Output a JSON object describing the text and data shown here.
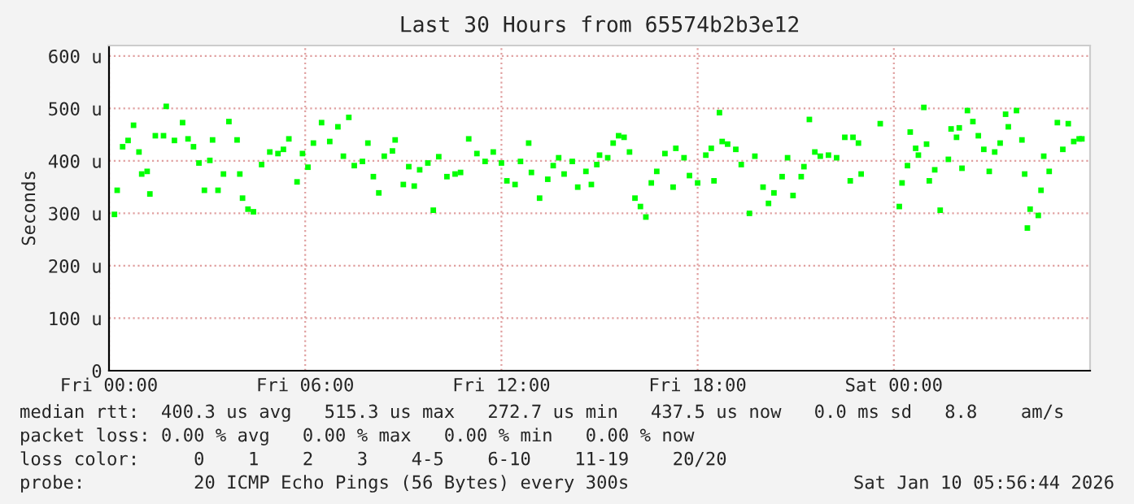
{
  "chart_data": {
    "type": "scatter",
    "title": "Last 30 Hours from 65574b2b3e12",
    "ylabel": "Seconds",
    "x": [
      "2026-01-09T00:10",
      "2026-01-09T00:15",
      "2026-01-09T00:25",
      "2026-01-09T00:35",
      "2026-01-09T00:45",
      "2026-01-09T00:55",
      "2026-01-09T01:00",
      "2026-01-09T01:10",
      "2026-01-09T01:15",
      "2026-01-09T01:25",
      "2026-01-09T01:40",
      "2026-01-09T01:45",
      "2026-01-09T02:00",
      "2026-01-09T02:15",
      "2026-01-09T02:25",
      "2026-01-09T02:35",
      "2026-01-09T02:45",
      "2026-01-09T02:55",
      "2026-01-09T03:05",
      "2026-01-09T03:10",
      "2026-01-09T03:20",
      "2026-01-09T03:30",
      "2026-01-09T03:40",
      "2026-01-09T03:55",
      "2026-01-09T04:00",
      "2026-01-09T04:05",
      "2026-01-09T04:15",
      "2026-01-09T04:25",
      "2026-01-09T04:40",
      "2026-01-09T04:55",
      "2026-01-09T05:10",
      "2026-01-09T05:20",
      "2026-01-09T05:30",
      "2026-01-09T05:45",
      "2026-01-09T05:55",
      "2026-01-09T06:05",
      "2026-01-09T06:15",
      "2026-01-09T06:30",
      "2026-01-09T06:45",
      "2026-01-09T07:00",
      "2026-01-09T07:10",
      "2026-01-09T07:20",
      "2026-01-09T07:30",
      "2026-01-09T07:45",
      "2026-01-09T07:55",
      "2026-01-09T08:05",
      "2026-01-09T08:15",
      "2026-01-09T08:25",
      "2026-01-09T08:40",
      "2026-01-09T08:45",
      "2026-01-09T09:00",
      "2026-01-09T09:10",
      "2026-01-09T09:20",
      "2026-01-09T09:30",
      "2026-01-09T09:45",
      "2026-01-09T09:55",
      "2026-01-09T10:05",
      "2026-01-09T10:20",
      "2026-01-09T10:35",
      "2026-01-09T10:45",
      "2026-01-09T11:00",
      "2026-01-09T11:15",
      "2026-01-09T11:30",
      "2026-01-09T11:45",
      "2026-01-09T12:00",
      "2026-01-09T12:10",
      "2026-01-09T12:25",
      "2026-01-09T12:35",
      "2026-01-09T12:50",
      "2026-01-09T12:55",
      "2026-01-09T13:10",
      "2026-01-09T13:25",
      "2026-01-09T13:35",
      "2026-01-09T13:45",
      "2026-01-09T13:55",
      "2026-01-09T14:10",
      "2026-01-09T14:20",
      "2026-01-09T14:35",
      "2026-01-09T14:45",
      "2026-01-09T14:55",
      "2026-01-09T15:00",
      "2026-01-09T15:15",
      "2026-01-09T15:25",
      "2026-01-09T15:35",
      "2026-01-09T15:45",
      "2026-01-09T15:55",
      "2026-01-09T16:05",
      "2026-01-09T16:15",
      "2026-01-09T16:25",
      "2026-01-09T16:35",
      "2026-01-09T16:45",
      "2026-01-09T17:00",
      "2026-01-09T17:15",
      "2026-01-09T17:20",
      "2026-01-09T17:35",
      "2026-01-09T17:45",
      "2026-01-09T18:00",
      "2026-01-09T18:15",
      "2026-01-09T18:25",
      "2026-01-09T18:30",
      "2026-01-09T18:40",
      "2026-01-09T18:45",
      "2026-01-09T18:55",
      "2026-01-09T19:10",
      "2026-01-09T19:20",
      "2026-01-09T19:35",
      "2026-01-09T19:45",
      "2026-01-09T20:00",
      "2026-01-09T20:10",
      "2026-01-09T20:20",
      "2026-01-09T20:35",
      "2026-01-09T20:45",
      "2026-01-09T20:55",
      "2026-01-09T21:10",
      "2026-01-09T21:15",
      "2026-01-09T21:25",
      "2026-01-09T21:35",
      "2026-01-09T21:45",
      "2026-01-09T22:00",
      "2026-01-09T22:15",
      "2026-01-09T22:30",
      "2026-01-09T22:40",
      "2026-01-09T22:45",
      "2026-01-09T22:55",
      "2026-01-09T23:00",
      "2026-01-09T23:35",
      "2026-01-10T00:10",
      "2026-01-10T00:15",
      "2026-01-10T00:25",
      "2026-01-10T00:30",
      "2026-01-10T00:40",
      "2026-01-10T00:45",
      "2026-01-10T00:55",
      "2026-01-10T01:00",
      "2026-01-10T01:05",
      "2026-01-10T01:15",
      "2026-01-10T01:25",
      "2026-01-10T01:40",
      "2026-01-10T01:45",
      "2026-01-10T01:55",
      "2026-01-10T02:00",
      "2026-01-10T02:05",
      "2026-01-10T02:15",
      "2026-01-10T02:25",
      "2026-01-10T02:35",
      "2026-01-10T02:45",
      "2026-01-10T02:55",
      "2026-01-10T03:05",
      "2026-01-10T03:15",
      "2026-01-10T03:25",
      "2026-01-10T03:30",
      "2026-01-10T03:45",
      "2026-01-10T03:55",
      "2026-01-10T04:00",
      "2026-01-10T04:05",
      "2026-01-10T04:10",
      "2026-01-10T04:25",
      "2026-01-10T04:30",
      "2026-01-10T04:35",
      "2026-01-10T04:45",
      "2026-01-10T05:00",
      "2026-01-10T05:10",
      "2026-01-10T05:20",
      "2026-01-10T05:30",
      "2026-01-10T05:40",
      "2026-01-10T05:45"
    ],
    "series": [
      {
        "color": "#00ff00",
        "values": [
          298,
          344,
          427,
          439,
          468,
          417,
          375,
          380,
          337,
          448,
          448,
          504,
          439,
          473,
          442,
          427,
          396,
          344,
          401,
          440,
          344,
          375,
          475,
          440,
          375,
          329,
          308,
          303,
          393,
          417,
          414,
          422,
          442,
          360,
          414,
          388,
          434,
          473,
          437,
          465,
          409,
          483,
          391,
          399,
          434,
          370,
          339,
          409,
          419,
          440,
          355,
          389,
          352,
          383,
          396,
          306,
          408,
          370,
          375,
          378,
          442,
          414,
          399,
          417,
          396,
          362,
          355,
          399,
          434,
          378,
          329,
          365,
          391,
          406,
          375,
          399,
          350,
          380,
          355,
          393,
          411,
          406,
          434,
          448,
          445,
          417,
          329,
          313,
          293,
          358,
          380,
          414,
          350,
          424,
          406,
          372,
          358,
          411,
          424,
          362,
          492,
          437,
          432,
          422,
          393,
          300,
          409,
          350,
          319,
          339,
          370,
          406,
          334,
          370,
          389,
          479,
          417,
          409,
          411,
          406,
          445,
          362,
          445,
          434,
          375,
          471,
          313,
          358,
          391,
          455,
          424,
          411,
          502,
          432,
          362,
          383,
          306,
          403,
          461,
          445,
          463,
          386,
          496,
          475,
          448,
          422,
          380,
          417,
          434,
          489,
          465,
          496,
          440,
          375,
          272,
          308,
          296,
          344,
          409,
          380,
          473,
          422,
          471,
          437,
          442,
          442
        ]
      }
    ],
    "marker": "square",
    "xlim": [
      "2026-01-09T00:00",
      "2026-01-10T06:00"
    ],
    "xticks": [
      {
        "value": "2026-01-09T00:00",
        "label": "Fri 00:00"
      },
      {
        "value": "2026-01-09T06:00",
        "label": "Fri 06:00"
      },
      {
        "value": "2026-01-09T12:00",
        "label": "Fri 12:00"
      },
      {
        "value": "2026-01-09T18:00",
        "label": "Fri 18:00"
      },
      {
        "value": "2026-01-10T00:00",
        "label": "Sat 00:00"
      }
    ],
    "ylim": [
      0,
      620
    ],
    "yticks": [
      0,
      {
        "value": 100,
        "label": "100 u"
      },
      {
        "value": 200,
        "label": "200 u"
      },
      {
        "value": 300,
        "label": "300 u"
      },
      {
        "value": 400,
        "label": "400 u"
      },
      {
        "value": 500,
        "label": "500 u"
      },
      {
        "value": 600,
        "label": "600 u"
      }
    ],
    "grid": true,
    "annotations": [
      "median rtt:  400.3 us avg   515.3 us max   272.7 us min   437.5 us now   0.0 ms sd   8.8    am/s",
      "packet loss: 0.00 % avg   0.00 % max   0.00 % min   0.00 % now",
      "loss color:     0    1    2    3    4-5    6-10    11-19    20/20",
      "probe:          20 ICMP Echo Pings (56 Bytes) every 300s",
      "Sat Jan 10 05:56:44 2026"
    ]
  }
}
